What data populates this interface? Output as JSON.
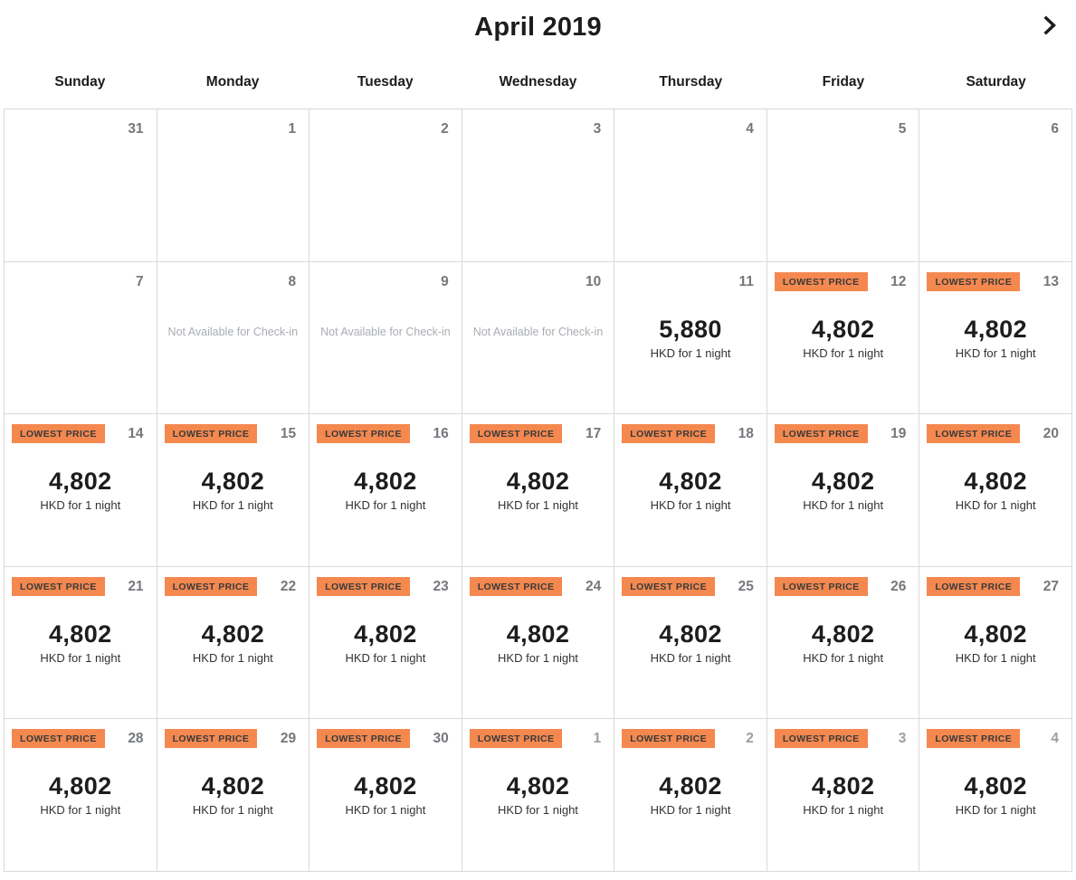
{
  "header": {
    "month_title": "April 2019",
    "next_icon": "chevron-right"
  },
  "weekday_labels": [
    "Sunday",
    "Monday",
    "Tuesday",
    "Wednesday",
    "Thursday",
    "Friday",
    "Saturday"
  ],
  "badge_label": "LOWEST PRICE",
  "price_unit_label": "HKD for 1 night",
  "unavailable_label": "Not Available for Check-in",
  "colors": {
    "title_text": "#1c1c1e",
    "border": "#d9d9d9",
    "day_number": "#74777b",
    "day_number_muted": "#9b9fa3",
    "badge_bg": "#f4884f",
    "badge_text": "#38393a",
    "price_text": "#1d1d20",
    "unit_text": "#303336",
    "muted_text": "#a9adb2"
  },
  "weeks": [
    [
      {
        "day": "31",
        "type": "empty"
      },
      {
        "day": "1",
        "type": "empty"
      },
      {
        "day": "2",
        "type": "empty"
      },
      {
        "day": "3",
        "type": "empty"
      },
      {
        "day": "4",
        "type": "empty"
      },
      {
        "day": "5",
        "type": "empty"
      },
      {
        "day": "6",
        "type": "empty"
      }
    ],
    [
      {
        "day": "7",
        "type": "empty"
      },
      {
        "day": "8",
        "type": "unavailable"
      },
      {
        "day": "9",
        "type": "unavailable"
      },
      {
        "day": "10",
        "type": "unavailable"
      },
      {
        "day": "11",
        "type": "price",
        "price": "5,880"
      },
      {
        "day": "12",
        "type": "lowest",
        "price": "4,802"
      },
      {
        "day": "13",
        "type": "lowest",
        "price": "4,802"
      }
    ],
    [
      {
        "day": "14",
        "type": "lowest",
        "price": "4,802"
      },
      {
        "day": "15",
        "type": "lowest",
        "price": "4,802"
      },
      {
        "day": "16",
        "type": "lowest",
        "price": "4,802"
      },
      {
        "day": "17",
        "type": "lowest",
        "price": "4,802"
      },
      {
        "day": "18",
        "type": "lowest",
        "price": "4,802"
      },
      {
        "day": "19",
        "type": "lowest",
        "price": "4,802"
      },
      {
        "day": "20",
        "type": "lowest",
        "price": "4,802"
      }
    ],
    [
      {
        "day": "21",
        "type": "lowest",
        "price": "4,802"
      },
      {
        "day": "22",
        "type": "lowest",
        "price": "4,802"
      },
      {
        "day": "23",
        "type": "lowest",
        "price": "4,802"
      },
      {
        "day": "24",
        "type": "lowest",
        "price": "4,802"
      },
      {
        "day": "25",
        "type": "lowest",
        "price": "4,802"
      },
      {
        "day": "26",
        "type": "lowest",
        "price": "4,802"
      },
      {
        "day": "27",
        "type": "lowest",
        "price": "4,802"
      }
    ],
    [
      {
        "day": "28",
        "type": "lowest",
        "price": "4,802"
      },
      {
        "day": "29",
        "type": "lowest",
        "price": "4,802"
      },
      {
        "day": "30",
        "type": "lowest",
        "price": "4,802"
      },
      {
        "day": "1",
        "type": "lowest",
        "price": "4,802",
        "muted": true
      },
      {
        "day": "2",
        "type": "lowest",
        "price": "4,802",
        "muted": true
      },
      {
        "day": "3",
        "type": "lowest",
        "price": "4,802",
        "muted": true
      },
      {
        "day": "4",
        "type": "lowest",
        "price": "4,802",
        "muted": true
      }
    ]
  ]
}
